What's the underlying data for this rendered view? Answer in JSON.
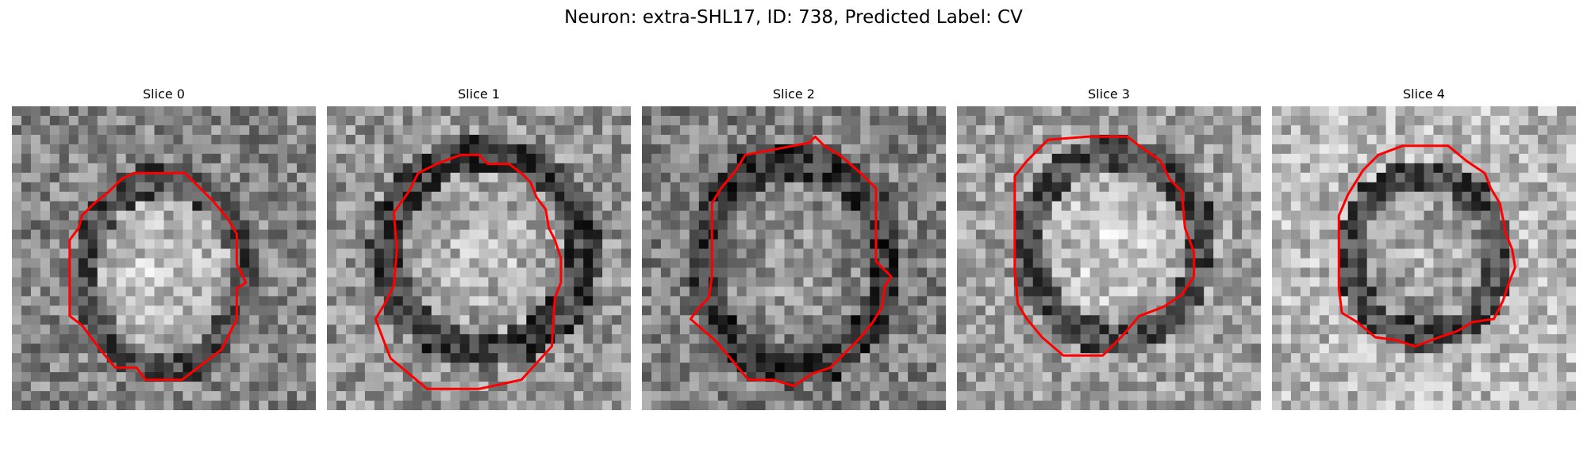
{
  "figure": {
    "title": "Neuron: extra-SHL17, ID: 738, Predicted Label: CV"
  },
  "colors": {
    "contour": "#ff0000",
    "background": "#ffffff"
  },
  "colormap": "gray",
  "slices": [
    {
      "title": "Slice 0"
    },
    {
      "title": "Slice 1"
    },
    {
      "title": "Slice 2"
    },
    {
      "title": "Slice 3"
    },
    {
      "title": "Slice 4"
    }
  ]
}
